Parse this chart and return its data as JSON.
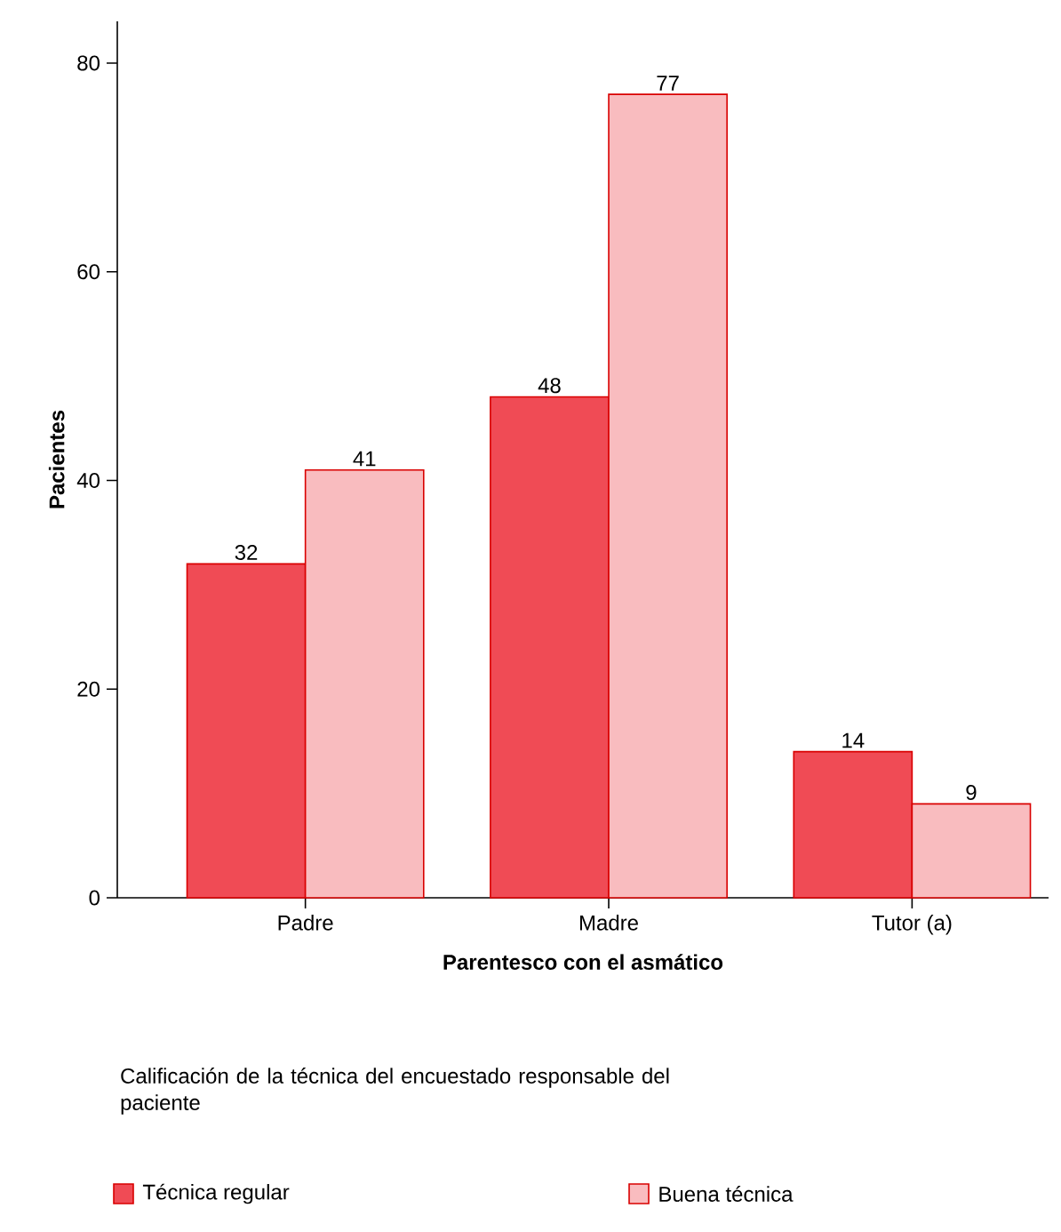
{
  "chart_data": {
    "type": "bar",
    "xlabel": "Parentesco con el asmático",
    "ylabel": "Pacientes",
    "categories": [
      "Padre",
      "Madre",
      "Tutor (a)"
    ],
    "series": [
      {
        "name": "Técnica regular",
        "color": "#f04b55",
        "values": [
          32,
          48,
          14
        ]
      },
      {
        "name": "Buena técnica",
        "color": "#f9bcbf",
        "values": [
          41,
          77,
          9
        ]
      }
    ],
    "ylim": [
      0,
      84
    ],
    "yticks": [
      0,
      20,
      40,
      60,
      80
    ],
    "data_labels": true,
    "grid": false,
    "legend": "bottom",
    "legend_title": "Calificación de la técnica del encuestado responsable del paciente"
  }
}
